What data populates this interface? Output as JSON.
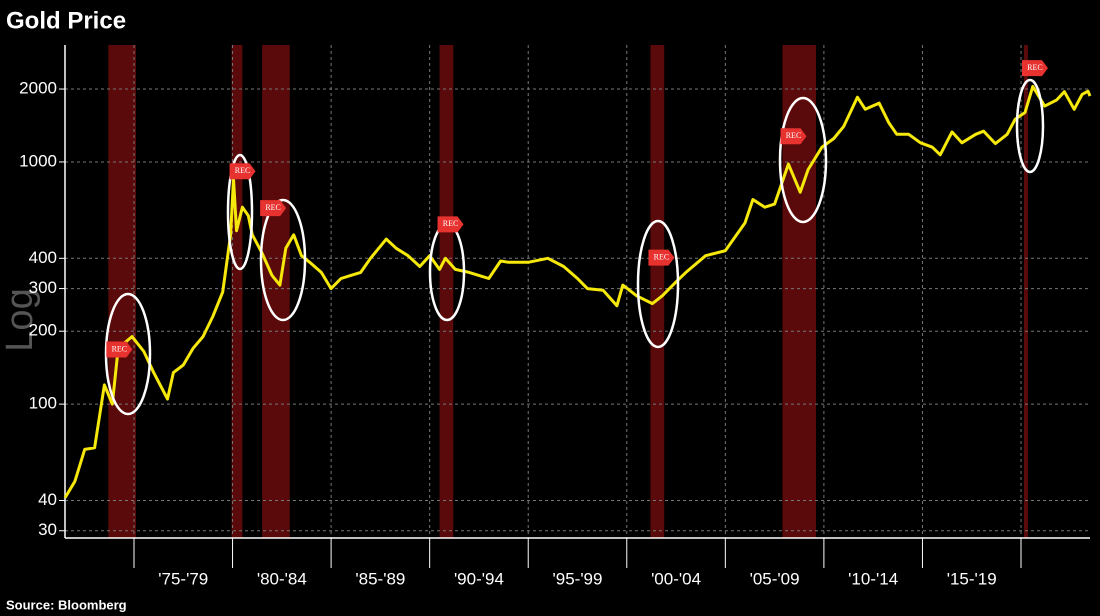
{
  "chart_data": {
    "type": "line",
    "title": "Gold Price",
    "source": "Source: Bloomberg",
    "y_label": "Log",
    "log_scale": true,
    "grid": true,
    "xlim": [
      1971.5,
      2023.5
    ],
    "xticks": [
      1975,
      1980,
      1985,
      1990,
      1995,
      2000,
      2005,
      2010,
      2015,
      2020
    ],
    "ylim": [
      28,
      3040
    ],
    "yticks": [
      30,
      40,
      100,
      200,
      300,
      400,
      1000,
      2000
    ],
    "periods": [
      {
        "from": 1975,
        "to": 1980,
        "label": "'75-'79"
      },
      {
        "from": 1980,
        "to": 1985,
        "label": "'80-'84"
      },
      {
        "from": 1985,
        "to": 1990,
        "label": "'85-'89"
      },
      {
        "from": 1990,
        "to": 1995,
        "label": "'90-'94"
      },
      {
        "from": 1995,
        "to": 2000,
        "label": "'95-'99"
      },
      {
        "from": 2000,
        "to": 2005,
        "label": "'00-'04"
      },
      {
        "from": 2005,
        "to": 2010,
        "label": "'05-'09"
      },
      {
        "from": 2010,
        "to": 2015,
        "label": "'10-'14"
      },
      {
        "from": 2015,
        "to": 2020,
        "label": "'15-'19"
      }
    ],
    "recessions": [
      {
        "from": 1973.7,
        "to": 1975.1,
        "label": "REC"
      },
      {
        "from": 1979.95,
        "to": 1980.5,
        "label": "REC"
      },
      {
        "from": 1981.5,
        "to": 1982.9,
        "label": "REC"
      },
      {
        "from": 1990.5,
        "to": 1991.2,
        "label": "REC"
      },
      {
        "from": 2001.2,
        "to": 2001.9,
        "label": "REC"
      },
      {
        "from": 2007.9,
        "to": 2009.6,
        "label": "REC"
      },
      {
        "from": 2020.15,
        "to": 2020.35,
        "label": "REC"
      }
    ],
    "series": [
      {
        "name": "Gold",
        "color": "#f5e80a",
        "x": [
          1971.5,
          1972,
          1972.5,
          1973,
          1973.5,
          1973.9,
          1974.2,
          1974.9,
          1975.5,
          1976,
          1976.7,
          1977,
          1977.5,
          1978,
          1978.5,
          1979,
          1979.5,
          1979.9,
          1980.05,
          1980.2,
          1980.5,
          1980.8,
          1981,
          1981.5,
          1982,
          1982.4,
          1982.7,
          1983.1,
          1983.5,
          1984,
          1984.5,
          1985,
          1985.5,
          1986,
          1986.5,
          1987,
          1987.8,
          1988.3,
          1988.9,
          1989.5,
          1990,
          1990.5,
          1990.8,
          1991.3,
          1992,
          1992.5,
          1993,
          1993.6,
          1994,
          1995,
          1996,
          1996.8,
          1997.5,
          1998,
          1998.8,
          1999.5,
          1999.8,
          2000.5,
          2001.3,
          2001.8,
          2002.5,
          2003,
          2004,
          2005,
          2006,
          2006.4,
          2007,
          2007.5,
          2008.2,
          2008.8,
          2009.2,
          2009.9,
          2010.5,
          2011,
          2011.7,
          2012.1,
          2012.8,
          2013.3,
          2013.7,
          2014.3,
          2014.9,
          2015.5,
          2015.9,
          2016.5,
          2017,
          2017.7,
          2018.1,
          2018.7,
          2019.3,
          2019.7,
          2020.2,
          2020.6,
          2021.2,
          2021.8,
          2022.2,
          2022.7,
          2023.1,
          2023.4,
          2023.5
        ],
        "values": [
          41,
          48,
          65,
          66,
          120,
          100,
          170,
          190,
          165,
          135,
          105,
          135,
          145,
          170,
          190,
          230,
          290,
          500,
          850,
          520,
          650,
          600,
          500,
          420,
          340,
          310,
          440,
          500,
          410,
          380,
          350,
          300,
          330,
          340,
          350,
          400,
          480,
          440,
          410,
          370,
          410,
          360,
          400,
          360,
          350,
          340,
          330,
          390,
          385,
          385,
          400,
          370,
          330,
          300,
          295,
          255,
          310,
          280,
          260,
          280,
          320,
          350,
          410,
          430,
          560,
          700,
          650,
          670,
          980,
          750,
          930,
          1150,
          1250,
          1400,
          1850,
          1650,
          1750,
          1450,
          1300,
          1300,
          1200,
          1150,
          1070,
          1330,
          1200,
          1300,
          1340,
          1190,
          1300,
          1500,
          1600,
          2050,
          1700,
          1800,
          1950,
          1650,
          1900,
          1960,
          1870
        ]
      }
    ]
  }
}
